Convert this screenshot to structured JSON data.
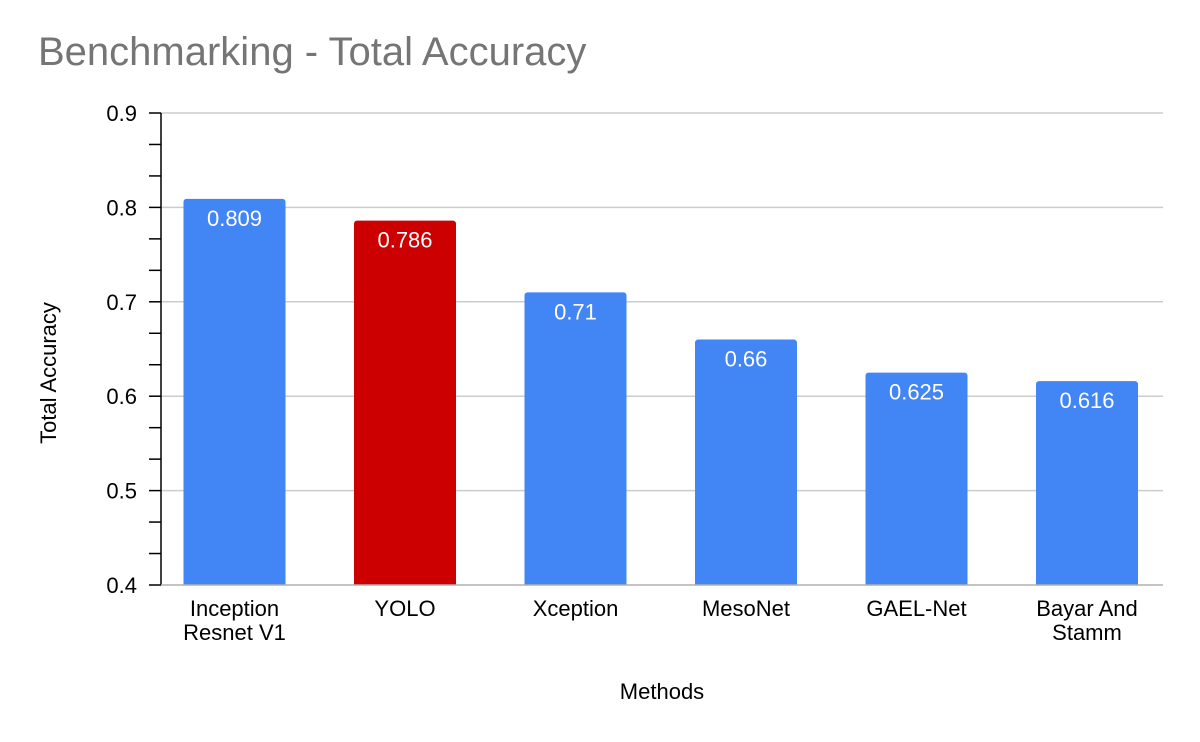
{
  "chart_data": {
    "type": "bar",
    "title": "Benchmarking - Total Accuracy",
    "xlabel": "Methods",
    "ylabel": "Total Accuracy",
    "categories": [
      "Inception Resnet V1",
      "YOLO",
      "Xception",
      "MesoNet",
      "GAEL-Net",
      "Bayar And Stamm"
    ],
    "category_labels": [
      [
        "Inception",
        "Resnet V1"
      ],
      [
        "YOLO"
      ],
      [
        "Xception"
      ],
      [
        "MesoNet"
      ],
      [
        "GAEL-Net"
      ],
      [
        "Bayar And",
        "Stamm"
      ]
    ],
    "values": [
      0.809,
      0.786,
      0.71,
      0.66,
      0.625,
      0.616
    ],
    "data_labels": [
      "0.809",
      "0.786",
      "0.71",
      "0.66",
      "0.625",
      "0.616"
    ],
    "bar_colors": [
      "#4285f4",
      "#cc0000",
      "#4285f4",
      "#4285f4",
      "#4285f4",
      "#4285f4"
    ],
    "ylim": [
      0.4,
      0.9
    ],
    "yticks": [
      "0.4",
      "0.5",
      "0.6",
      "0.7",
      "0.8",
      "0.9"
    ],
    "grid": true,
    "legend": "none"
  },
  "colors": {
    "title": "#757575",
    "gridline": "#cccccc",
    "axis": "#000000",
    "data_label": "#ffffff",
    "text": "#000000"
  }
}
